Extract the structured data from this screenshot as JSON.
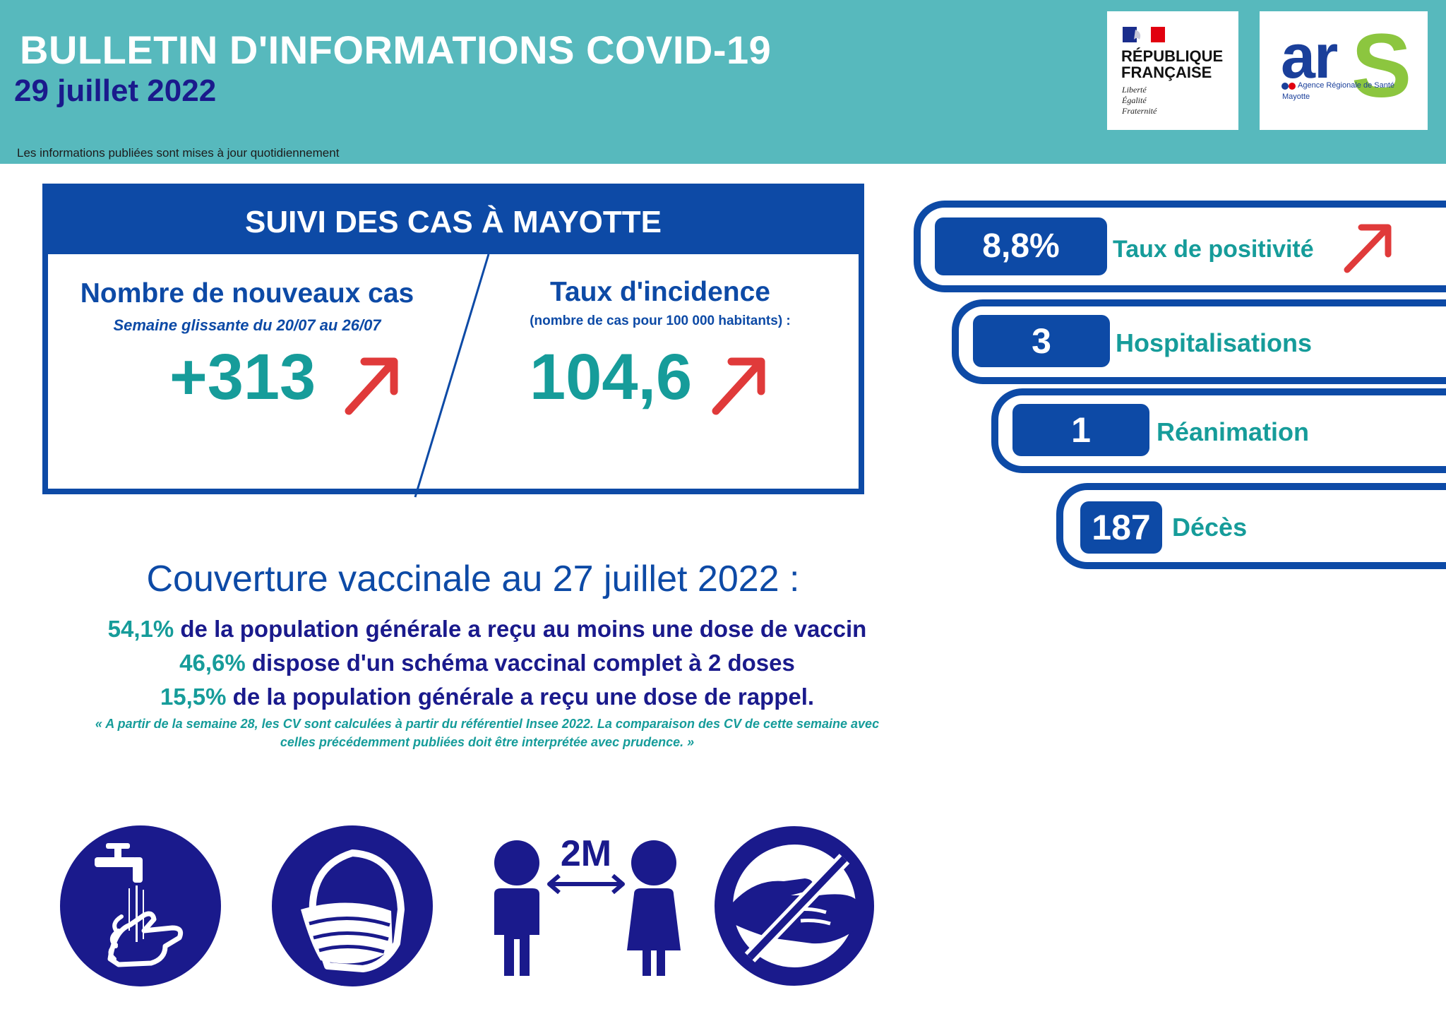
{
  "header": {
    "title": "BULLETIN D'INFORMATIONS COVID-19",
    "date": "29 juillet 2022",
    "note": "Les informations publiées sont mises à jour quotidiennement",
    "logo_rf": {
      "line1": "RÉPUBLIQUE",
      "line2": "FRANÇAISE",
      "motto1": "Liberté",
      "motto2": "Égalité",
      "motto3": "Fraternité"
    },
    "logo_ars": {
      "mark": "ar",
      "s": "S",
      "line1": "Agence Régionale de Santé",
      "line2": "Mayotte"
    }
  },
  "cases": {
    "title": "SUIVI DES CAS À MAYOTTE",
    "new_cases_label": "Nombre de nouveaux cas",
    "new_cases_period": "Semaine glissante du 20/07 au 26/07",
    "new_cases_value": "+313",
    "new_cases_trend": "up",
    "incidence_label": "Taux d'incidence",
    "incidence_sub": "(nombre de cas pour 100 000 habitants) :",
    "incidence_value": "104,6",
    "incidence_trend": "up"
  },
  "indicators": [
    {
      "value": "8,8%",
      "label": "Taux de positivité",
      "trend": "up"
    },
    {
      "value": "3",
      "label": "Hospitalisations"
    },
    {
      "value": "1",
      "label": "Réanimation"
    },
    {
      "value": "187",
      "label": "Décès"
    }
  ],
  "vaccination": {
    "title": "Couverture vaccinale au 27 juillet 2022 :",
    "lines": [
      {
        "pct": "54,1%",
        "text": " de la population générale a reçu au moins une dose de vaccin"
      },
      {
        "pct": "46,6%",
        "text": " dispose d'un schéma vaccinal complet à 2 doses"
      },
      {
        "pct": "15,5%",
        "text": " de la population générale a reçu une dose de rappel."
      }
    ],
    "disclaimer_line1": "« A partir de la semaine 28, les CV sont calculées à partir du référentiel Insee 2022. La comparaison des CV de cette semaine avec",
    "disclaimer_line2": "celles précédemment publiées doit être interprétée avec prudence. »"
  },
  "gestures": {
    "distance_label": "2M",
    "icons": [
      "hand-washing-icon",
      "face-mask-icon",
      "social-distance-icon",
      "no-handshake-icon"
    ]
  },
  "colors": {
    "header_bg": "#57b9bd",
    "primary_blue": "#0d4aa6",
    "teal": "#169c9a",
    "navy": "#1a1a8c",
    "arrow_red": "#e03a3a"
  }
}
